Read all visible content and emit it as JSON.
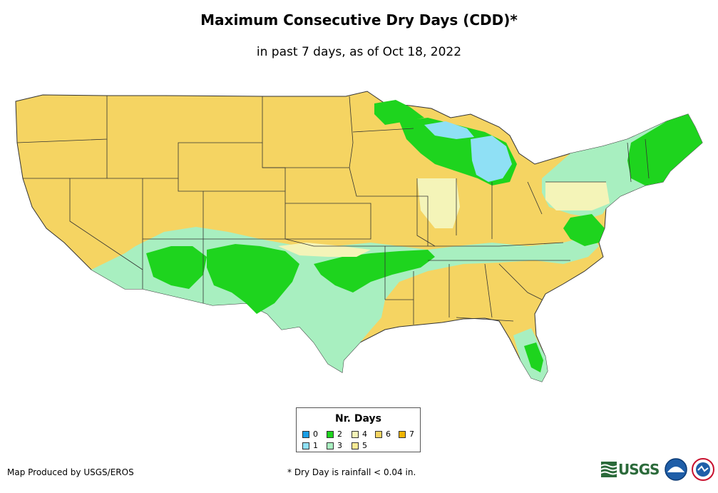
{
  "title": "Maximum Consecutive Dry Days (CDD)*",
  "subtitle": "in past 7 days, as of Oct 18, 2022",
  "legend": {
    "title": "Nr. Days",
    "items": [
      {
        "label": "0",
        "color": "#1a9ee6"
      },
      {
        "label": "1",
        "color": "#8fe0f5"
      },
      {
        "label": "2",
        "color": "#1ed41e"
      },
      {
        "label": "3",
        "color": "#a8efc0"
      },
      {
        "label": "4",
        "color": "#f4f4b8"
      },
      {
        "label": "5",
        "color": "#f7ea94"
      },
      {
        "label": "6",
        "color": "#f5d462"
      },
      {
        "label": "7",
        "color": "#f0b400"
      }
    ]
  },
  "credit": "Map Produced by USGS/EROS",
  "footnote": "* Dry Day is rainfall < 0.04 in.",
  "logos": {
    "usgs": "USGS",
    "noaa": "noaa-logo",
    "nws": "nws-logo"
  },
  "colors": {
    "base": "#f5d462",
    "three": "#a8efc0",
    "two": "#1ed41e",
    "one": "#8fe0f5",
    "four": "#f4f4b8",
    "five": "#f7ea94",
    "border": "#333333"
  }
}
